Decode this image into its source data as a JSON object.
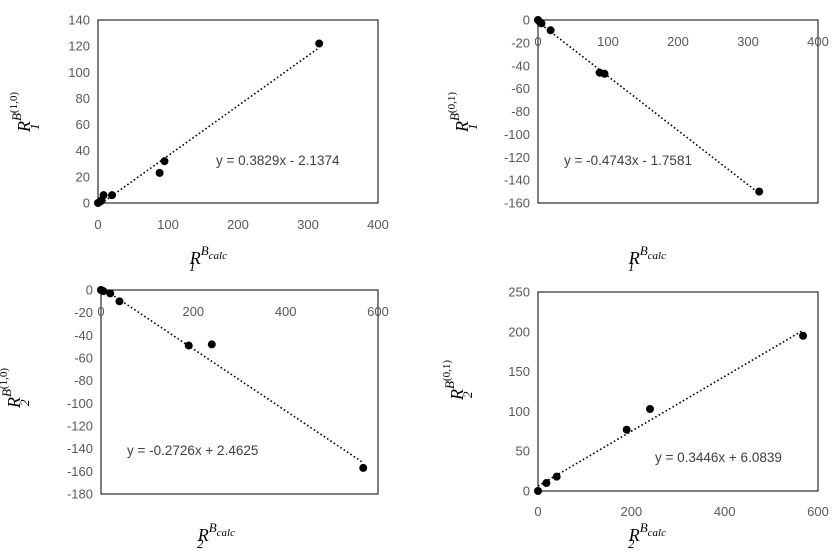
{
  "chart_data": [
    {
      "type": "scatter",
      "xlim": [
        0,
        400
      ],
      "xticks": [
        0,
        100,
        200,
        300,
        400
      ],
      "ylim": [
        0,
        140
      ],
      "yticks": [
        0,
        20,
        40,
        60,
        80,
        100,
        120,
        140
      ],
      "xlabel": {
        "base": "R",
        "sub": "1",
        "sup": "B",
        "supsub": "calc"
      },
      "ylabel": {
        "base": "R",
        "sub": "1",
        "sup": "B",
        "supsup": "(1,0)"
      },
      "equation": "y = 0.3829x - 2.1374",
      "trendline": {
        "slope": 0.3829,
        "intercept": -2.1374,
        "x_range": [
          0,
          316
        ]
      },
      "points": [
        [
          0,
          0
        ],
        [
          3,
          1
        ],
        [
          5,
          2
        ],
        [
          8,
          6
        ],
        [
          20,
          6
        ],
        [
          88,
          23
        ],
        [
          95,
          32
        ],
        [
          316,
          122
        ]
      ],
      "grid": false
    },
    {
      "type": "scatter",
      "xlim": [
        0,
        400
      ],
      "xticks": [
        0,
        100,
        200,
        300,
        400
      ],
      "ylim": [
        -160,
        0
      ],
      "yticks": [
        0,
        -20,
        -40,
        -60,
        -80,
        -100,
        -120,
        -140,
        -160
      ],
      "xlabel": {
        "base": "R",
        "sub": "1",
        "sup": "B",
        "supsub": "calc"
      },
      "ylabel": {
        "base": "R",
        "sub": "1",
        "sup": "B",
        "supsup": "(0,1)"
      },
      "equation": "y = -0.4743x - 1.7581",
      "trendline": {
        "slope": -0.4743,
        "intercept": -1.7581,
        "x_range": [
          0,
          316
        ]
      },
      "points": [
        [
          0,
          0
        ],
        [
          3,
          -2
        ],
        [
          5,
          -3
        ],
        [
          18,
          -9
        ],
        [
          88,
          -46
        ],
        [
          95,
          -47
        ],
        [
          316,
          -150
        ]
      ],
      "grid": false
    },
    {
      "type": "scatter",
      "xlim": [
        0,
        600
      ],
      "xticks": [
        0,
        200,
        400,
        600
      ],
      "ylim": [
        -180,
        0
      ],
      "yticks": [
        0,
        -20,
        -40,
        -60,
        -80,
        -100,
        -120,
        -140,
        -160,
        -180
      ],
      "xlabel": {
        "base": "R",
        "sub": "2",
        "sup": "B",
        "supsub": "calc"
      },
      "ylabel": {
        "base": "R",
        "sub": "2",
        "sup": "B",
        "supsup": "(1,0)"
      },
      "equation": "y = -0.2726x + 2.4625",
      "trendline": {
        "slope": -0.2726,
        "intercept": 2.4625,
        "x_range": [
          0,
          568
        ]
      },
      "points": [
        [
          0,
          0
        ],
        [
          5,
          -1
        ],
        [
          20,
          -3
        ],
        [
          40,
          -10
        ],
        [
          190,
          -49
        ],
        [
          240,
          -48
        ],
        [
          568,
          -157
        ]
      ],
      "grid": false
    },
    {
      "type": "scatter",
      "xlim": [
        0,
        600
      ],
      "xticks": [
        0,
        200,
        400,
        600
      ],
      "ylim": [
        0,
        250
      ],
      "yticks": [
        0,
        50,
        100,
        150,
        200,
        250
      ],
      "xlabel": {
        "base": "R",
        "sub": "2",
        "sup": "B",
        "supsub": "calc"
      },
      "ylabel": {
        "base": "R",
        "sub": "2",
        "sup": "B",
        "supsup": "(0,1)"
      },
      "equation": "y = 0.3446x + 6.0839",
      "trendline": {
        "slope": 0.3446,
        "intercept": 6.0839,
        "x_range": [
          0,
          568
        ]
      },
      "points": [
        [
          0,
          0
        ],
        [
          18,
          10
        ],
        [
          40,
          18
        ],
        [
          190,
          77
        ],
        [
          240,
          103
        ],
        [
          568,
          195
        ]
      ],
      "grid": false
    }
  ]
}
